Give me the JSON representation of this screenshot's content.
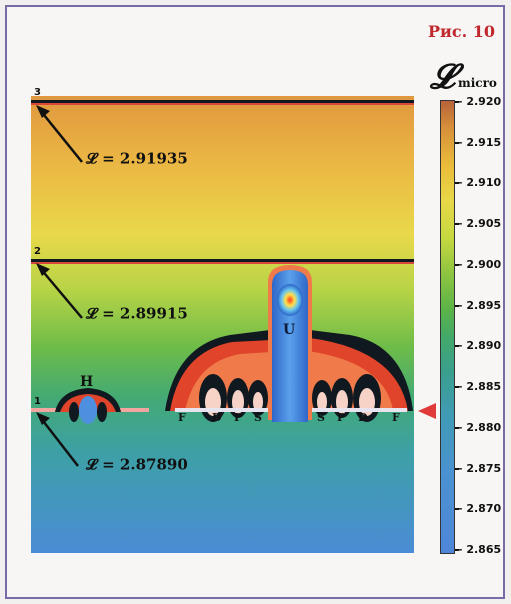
{
  "figure_label": "Рис. 10",
  "scale": {
    "symbol": "𝓛",
    "subscript": "micro",
    "ticks": [
      "2.920",
      "2.915",
      "2.910",
      "2.905",
      "2.900",
      "2.895",
      "2.890",
      "2.885",
      "2.880",
      "2.875",
      "2.870",
      "2.865"
    ],
    "pointer_value": "2.880",
    "pointer_color": "#e03a3a"
  },
  "levels": [
    {
      "id": "3",
      "value": "𝓛 = 2.91935"
    },
    {
      "id": "2",
      "value": "𝓛 = 2.89915"
    },
    {
      "id": "1",
      "value": "𝓛 = 2.87890"
    }
  ],
  "structure_marks": {
    "H": "H",
    "U": "U",
    "left": [
      "F",
      "D",
      "P",
      "S"
    ],
    "right": [
      "S",
      "P",
      "D",
      "F"
    ]
  },
  "colors": {
    "accent": "#c0282e",
    "frame": "#7a6aa8"
  }
}
